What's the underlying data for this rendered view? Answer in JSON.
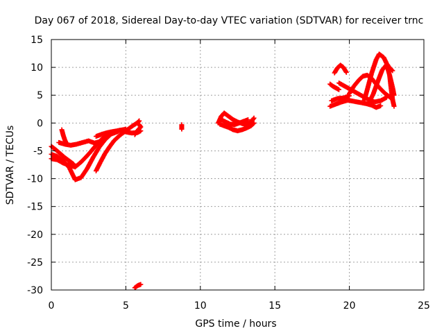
{
  "chart_data": {
    "type": "scatter",
    "title": "Day 067 of 2018, Sidereal Day-to-day VTEC variation (SDTVAR) for receiver trnc",
    "xlabel": "GPS time / hours",
    "ylabel": "SDTVAR / TECUs",
    "xlim": [
      0,
      25
    ],
    "ylim": [
      -30,
      15
    ],
    "x_ticks": [
      0,
      5,
      10,
      15,
      20,
      25
    ],
    "x_tick_labels": [
      "0",
      "5",
      "10",
      "15",
      "20",
      "25"
    ],
    "y_ticks": [
      15,
      10,
      5,
      0,
      -5,
      -10,
      -15,
      -20,
      -25,
      -30
    ],
    "y_tick_labels": [
      "15",
      "10",
      "5",
      "0",
      "-5",
      "-10",
      "-15",
      "-20",
      "-25",
      "-30"
    ],
    "grid": true,
    "legend": false,
    "marker": "+",
    "marker_color": "#ff0000",
    "series": [
      {
        "tracks": [
          [
            [
              0.0,
              -4.2
            ],
            [
              0.3,
              -4.8
            ],
            [
              0.6,
              -5.5
            ],
            [
              0.9,
              -6.2
            ],
            [
              1.2,
              -6.8
            ],
            [
              1.5,
              -7.4
            ]
          ],
          [
            [
              0.0,
              -5.6
            ],
            [
              0.4,
              -6.0
            ],
            [
              0.8,
              -6.8
            ],
            [
              1.2,
              -8.0
            ],
            [
              1.6,
              -10.2
            ],
            [
              2.0,
              -9.8
            ],
            [
              2.4,
              -8.2
            ],
            [
              2.8,
              -6.2
            ],
            [
              3.2,
              -4.4
            ],
            [
              3.6,
              -3.0
            ],
            [
              4.0,
              -2.0
            ],
            [
              4.5,
              -1.5
            ]
          ],
          [
            [
              0.0,
              -6.4
            ],
            [
              0.4,
              -6.6
            ],
            [
              0.8,
              -7.2
            ],
            [
              1.2,
              -7.6
            ],
            [
              1.6,
              -7.9
            ],
            [
              2.0,
              -7.0
            ],
            [
              2.5,
              -5.6
            ],
            [
              3.0,
              -4.0
            ],
            [
              3.5,
              -2.6
            ],
            [
              4.0,
              -1.8
            ],
            [
              4.6,
              -1.3
            ],
            [
              5.0,
              -1.1
            ]
          ],
          [
            [
              0.5,
              -3.5
            ],
            [
              0.9,
              -3.8
            ],
            [
              1.3,
              -4.0
            ],
            [
              1.7,
              -3.8
            ],
            [
              2.1,
              -3.5
            ],
            [
              2.5,
              -3.2
            ],
            [
              2.9,
              -3.6
            ],
            [
              3.3,
              -3.3
            ]
          ],
          [
            [
              0.7,
              -1.2
            ],
            [
              0.8,
              -2.2
            ],
            [
              0.9,
              -3.0
            ],
            [
              1.0,
              -3.6
            ]
          ],
          [
            [
              3.0,
              -8.6
            ],
            [
              3.3,
              -7.0
            ],
            [
              3.6,
              -5.5
            ],
            [
              3.9,
              -4.3
            ],
            [
              4.2,
              -3.2
            ],
            [
              4.6,
              -2.2
            ],
            [
              5.0,
              -1.4
            ],
            [
              5.4,
              -0.6
            ],
            [
              5.8,
              0.1
            ],
            [
              5.9,
              0.4
            ]
          ],
          [
            [
              3.0,
              -2.4
            ],
            [
              3.4,
              -2.0
            ],
            [
              3.8,
              -1.7
            ],
            [
              4.2,
              -1.5
            ],
            [
              4.6,
              -1.3
            ],
            [
              5.0,
              -1.6
            ],
            [
              5.4,
              -1.8
            ],
            [
              5.8,
              -1.7
            ],
            [
              6.0,
              -1.4
            ]
          ],
          [
            [
              5.6,
              -2.1
            ],
            [
              5.8,
              -1.3
            ],
            [
              6.0,
              -0.7
            ],
            [
              5.9,
              -0.3
            ]
          ],
          [
            [
              5.6,
              -29.6
            ],
            [
              5.7,
              -29.4
            ],
            [
              5.8,
              -29.2
            ],
            [
              5.9,
              -29.1
            ],
            [
              6.0,
              -29.0
            ]
          ],
          [
            [
              8.75,
              -0.3
            ],
            [
              8.75,
              -0.6
            ],
            [
              8.75,
              -0.9
            ],
            [
              8.75,
              -1.1
            ]
          ],
          [
            [
              11.2,
              0.0
            ],
            [
              11.4,
              1.2
            ],
            [
              11.6,
              1.8
            ],
            [
              11.9,
              1.2
            ],
            [
              12.2,
              0.6
            ],
            [
              12.5,
              0.2
            ],
            [
              12.8,
              -0.1
            ],
            [
              13.1,
              -0.3
            ],
            [
              13.4,
              0.2
            ],
            [
              13.6,
              0.9
            ]
          ],
          [
            [
              11.3,
              -0.2
            ],
            [
              11.6,
              -0.5
            ],
            [
              11.9,
              -0.8
            ],
            [
              12.2,
              -1.2
            ],
            [
              12.5,
              -1.4
            ],
            [
              12.8,
              -1.2
            ],
            [
              13.1,
              -0.9
            ],
            [
              13.4,
              -0.5
            ],
            [
              13.6,
              0.0
            ]
          ],
          [
            [
              11.4,
              0.6
            ],
            [
              11.7,
              0.2
            ],
            [
              12.0,
              -0.2
            ],
            [
              12.3,
              -0.3
            ],
            [
              12.6,
              0.0
            ],
            [
              12.9,
              0.3
            ],
            [
              13.2,
              0.6
            ]
          ],
          [
            [
              18.7,
              7.0
            ],
            [
              18.9,
              6.6
            ],
            [
              19.1,
              6.3
            ],
            [
              19.3,
              6.0
            ]
          ],
          [
            [
              19.0,
              9.0
            ],
            [
              19.2,
              9.9
            ],
            [
              19.4,
              10.4
            ],
            [
              19.6,
              10.0
            ],
            [
              19.8,
              9.1
            ]
          ],
          [
            [
              18.7,
              3.0
            ],
            [
              19.1,
              3.4
            ],
            [
              19.5,
              3.8
            ],
            [
              19.9,
              4.1
            ],
            [
              20.3,
              3.9
            ],
            [
              20.7,
              3.7
            ],
            [
              21.1,
              3.5
            ],
            [
              21.5,
              3.2
            ],
            [
              21.8,
              2.8
            ],
            [
              22.1,
              3.1
            ]
          ],
          [
            [
              18.8,
              4.0
            ],
            [
              19.2,
              4.4
            ],
            [
              19.6,
              4.5
            ],
            [
              20.0,
              4.9
            ]
          ],
          [
            [
              19.3,
              7.2
            ],
            [
              19.7,
              6.6
            ],
            [
              20.1,
              6.0
            ],
            [
              20.5,
              5.4
            ],
            [
              20.9,
              4.8
            ],
            [
              21.3,
              4.2
            ],
            [
              21.7,
              3.8
            ],
            [
              22.1,
              4.0
            ],
            [
              22.5,
              4.6
            ]
          ],
          [
            [
              20.0,
              5.3
            ],
            [
              20.3,
              6.6
            ],
            [
              20.6,
              7.6
            ],
            [
              20.9,
              8.4
            ],
            [
              21.2,
              8.6
            ],
            [
              21.5,
              8.0
            ],
            [
              21.8,
              7.0
            ],
            [
              22.1,
              6.1
            ],
            [
              22.4,
              5.3
            ],
            [
              22.7,
              4.7
            ],
            [
              22.9,
              4.2
            ]
          ],
          [
            [
              21.0,
              4.1
            ],
            [
              21.2,
              6.0
            ],
            [
              21.5,
              9.0
            ],
            [
              21.8,
              11.4
            ],
            [
              22.0,
              12.4
            ],
            [
              22.3,
              11.8
            ],
            [
              22.5,
              10.7
            ],
            [
              22.7,
              9.9
            ],
            [
              22.9,
              9.4
            ]
          ],
          [
            [
              21.3,
              3.6
            ],
            [
              21.6,
              5.2
            ],
            [
              21.9,
              7.4
            ],
            [
              22.2,
              9.5
            ],
            [
              22.5,
              10.5
            ],
            [
              22.7,
              8.6
            ],
            [
              22.9,
              6.4
            ],
            [
              23.0,
              5.0
            ]
          ],
          [
            [
              22.7,
              8.6
            ],
            [
              22.8,
              6.2
            ],
            [
              22.9,
              4.2
            ],
            [
              23.0,
              3.0
            ]
          ]
        ]
      }
    ]
  }
}
